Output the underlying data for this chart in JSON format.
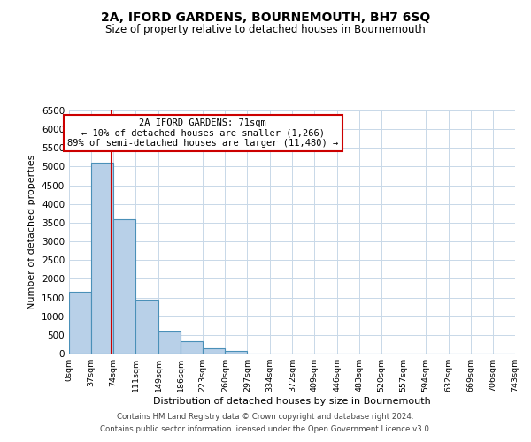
{
  "title": "2A, IFORD GARDENS, BOURNEMOUTH, BH7 6SQ",
  "subtitle": "Size of property relative to detached houses in Bournemouth",
  "xlabel": "Distribution of detached houses by size in Bournemouth",
  "ylabel": "Number of detached properties",
  "bin_edges": [
    0,
    37,
    74,
    111,
    149,
    186,
    223,
    260,
    297,
    334,
    372,
    409,
    446,
    483,
    520,
    557,
    594,
    632,
    669,
    706,
    743
  ],
  "bar_heights": [
    1650,
    5100,
    3600,
    1450,
    600,
    320,
    150,
    60,
    0,
    0,
    0,
    0,
    0,
    0,
    0,
    0,
    0,
    0,
    0,
    0
  ],
  "bar_color": "#b8d0e8",
  "bar_edge_color": "#4a90b8",
  "bar_edge_width": 0.8,
  "ylim": [
    0,
    6500
  ],
  "yticks": [
    0,
    500,
    1000,
    1500,
    2000,
    2500,
    3000,
    3500,
    4000,
    4500,
    5000,
    5500,
    6000,
    6500
  ],
  "property_line_x": 71,
  "property_line_color": "#cc0000",
  "annotation_text": "2A IFORD GARDENS: 71sqm\n← 10% of detached houses are smaller (1,266)\n89% of semi-detached houses are larger (11,480) →",
  "annotation_box_color": "#cc0000",
  "footer_line1": "Contains HM Land Registry data © Crown copyright and database right 2024.",
  "footer_line2": "Contains public sector information licensed under the Open Government Licence v3.0.",
  "background_color": "#ffffff",
  "grid_color": "#c8d8e8",
  "tick_labels": [
    "0sqm",
    "37sqm",
    "74sqm",
    "111sqm",
    "149sqm",
    "186sqm",
    "223sqm",
    "260sqm",
    "297sqm",
    "334sqm",
    "372sqm",
    "409sqm",
    "446sqm",
    "483sqm",
    "520sqm",
    "557sqm",
    "594sqm",
    "632sqm",
    "669sqm",
    "706sqm",
    "743sqm"
  ]
}
